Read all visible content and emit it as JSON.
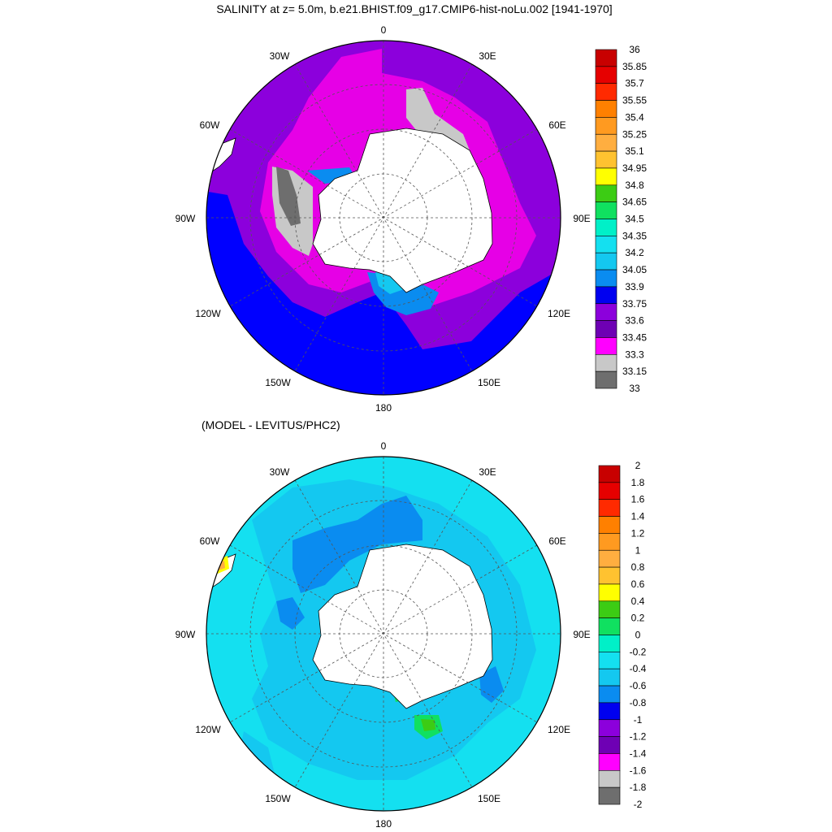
{
  "panels": [
    {
      "id": "salinity",
      "title": "SALINITY at z=   5.0m, b.e21.BHIST.f09_g17.CMIP6-hist-noLu.002 [1941-1970]",
      "lon_labels": [
        "0",
        "30E",
        "60E",
        "90E",
        "120E",
        "150E",
        "180",
        "150W",
        "120W",
        "90W",
        "60W",
        "30W"
      ],
      "colorbar": {
        "levels": [
          "36",
          "35.85",
          "35.7",
          "35.55",
          "35.4",
          "35.25",
          "35.1",
          "34.95",
          "34.8",
          "34.65",
          "34.5",
          "34.35",
          "34.2",
          "34.05",
          "33.9",
          "33.75",
          "33.6",
          "33.45",
          "33.3",
          "33.15",
          "33"
        ],
        "colors": [
          "#c80000",
          "#e60000",
          "#ff2a00",
          "#ff8000",
          "#ff9a20",
          "#ffae40",
          "#ffc230",
          "#ffff00",
          "#3ccc14",
          "#10e060",
          "#00f0c8",
          "#14e0f0",
          "#14c8f0",
          "#0a8cf0",
          "#0000f0",
          "#8c00dc",
          "#6e00b4",
          "#ff00ff",
          "#c8c8c8",
          "#6e6e6e"
        ]
      },
      "field_colors": {
        "ocean": "#0000ff",
        "band": "#8c00dc",
        "coastal": "#e600e6",
        "shelf": "#c8c8c8",
        "shelf_dark": "#6e6e6e",
        "shelf_blue": "#0a8cf0",
        "shelf_cyan": "#14c8f0"
      }
    },
    {
      "id": "difference",
      "title": "(MODEL - LEVITUS/PHC2)",
      "lon_labels": [
        "0",
        "30E",
        "60E",
        "90E",
        "120E",
        "150E",
        "180",
        "150W",
        "120W",
        "90W",
        "60W",
        "30W"
      ],
      "colorbar": {
        "levels": [
          "2",
          "1.8",
          "1.6",
          "1.4",
          "1.2",
          "1",
          "0.8",
          "0.6",
          "0.4",
          "0.2",
          "0",
          "-0.2",
          "-0.4",
          "-0.6",
          "-0.8",
          "-1",
          "-1.2",
          "-1.4",
          "-1.6",
          "-1.8",
          "-2"
        ],
        "colors": [
          "#c80000",
          "#e60000",
          "#ff2a00",
          "#ff8000",
          "#ff9a20",
          "#ffae40",
          "#ffc230",
          "#ffff00",
          "#3ccc14",
          "#10e060",
          "#00f0c8",
          "#14e0f0",
          "#14c8f0",
          "#0a8cf0",
          "#0000f0",
          "#8c00dc",
          "#6e00b4",
          "#ff00ff",
          "#c8c8c8",
          "#6e6e6e"
        ]
      },
      "field_colors": {
        "ocean": "#14e0f0",
        "band": "#14c8f0",
        "coastal": "#0a8cf0",
        "shelf": "#14c8f0",
        "shelf_dark": "#0000f0",
        "shelf_blue": "#00f0c8",
        "shelf_cyan": "#10e060"
      }
    }
  ]
}
